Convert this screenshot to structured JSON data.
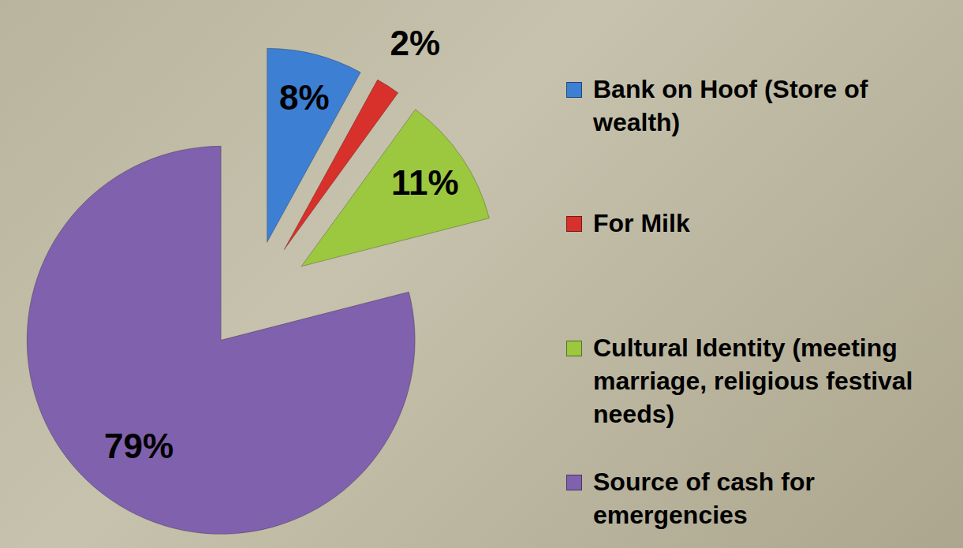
{
  "chart_data": {
    "type": "pie",
    "categories": [
      "Bank on Hoof (Store of wealth)",
      "For Milk",
      "Cultural Identity (meeting marriage, religious festival needs)",
      "Source of cash for emergencies"
    ],
    "values": [
      8,
      2,
      11,
      79
    ],
    "value_labels": [
      "8%",
      "2%",
      "11%",
      "79%"
    ],
    "colors": [
      "#3d7fd3",
      "#d8302b",
      "#9bc83f",
      "#8061ae"
    ],
    "data_labels": true,
    "legend": "right"
  }
}
